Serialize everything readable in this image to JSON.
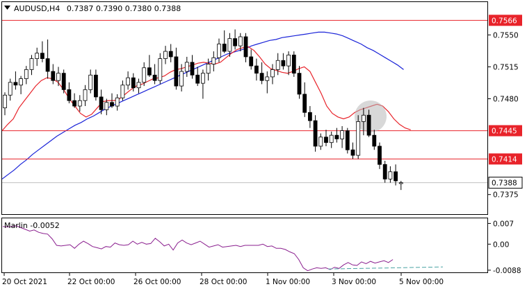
{
  "chart_data": {
    "type": "candlestick",
    "title": "AUDUSD,H4",
    "ohlc_header": "0.7387 0.7390 0.7380 0.7388",
    "price_axis": {
      "ylim": [
        0.73535,
        0.7586
      ],
      "ticks": [
        "0.7550",
        "0.7515",
        "0.7480",
        "0.7375"
      ]
    },
    "levels": [
      {
        "value": 0.7566,
        "label": "0.7566"
      },
      {
        "value": 0.7445,
        "label": "0.7445"
      },
      {
        "value": 0.7414,
        "label": "0.7414"
      }
    ],
    "current_price": {
      "value": 0.7388,
      "label": "0.7388"
    },
    "x_labels": [
      "20 Oct 2021",
      "22 Oct 00:00",
      "26 Oct 00:00",
      "28 Oct 00:00",
      "1 Nov 00:00",
      "3 Nov 00:00",
      "5 Nov 00:00"
    ],
    "candles": [
      [
        0.747,
        0.7487,
        0.7462,
        0.7484
      ],
      [
        0.7484,
        0.7502,
        0.7478,
        0.7498
      ],
      [
        0.7498,
        0.751,
        0.749,
        0.7495
      ],
      [
        0.7495,
        0.7505,
        0.7485,
        0.7502
      ],
      [
        0.7502,
        0.7516,
        0.7496,
        0.7512
      ],
      [
        0.7512,
        0.7528,
        0.7506,
        0.7524
      ],
      [
        0.7524,
        0.7536,
        0.7516,
        0.753
      ],
      [
        0.753,
        0.7543,
        0.752,
        0.7524
      ],
      [
        0.7524,
        0.7545,
        0.7502,
        0.751
      ],
      [
        0.751,
        0.7518,
        0.7496,
        0.75
      ],
      [
        0.75,
        0.7515,
        0.7494,
        0.7508
      ],
      [
        0.7508,
        0.7512,
        0.7486,
        0.749
      ],
      [
        0.749,
        0.7498,
        0.7475,
        0.7478
      ],
      [
        0.7478,
        0.7486,
        0.747,
        0.7472
      ],
      [
        0.7472,
        0.7484,
        0.7466,
        0.7478
      ],
      [
        0.7478,
        0.7495,
        0.7472,
        0.749
      ],
      [
        0.749,
        0.7512,
        0.7486,
        0.7506
      ],
      [
        0.7506,
        0.7512,
        0.7478,
        0.7482
      ],
      [
        0.7482,
        0.749,
        0.7463,
        0.7468
      ],
      [
        0.7468,
        0.748,
        0.7462,
        0.7476
      ],
      [
        0.7476,
        0.7486,
        0.747,
        0.7472
      ],
      [
        0.7472,
        0.7485,
        0.7467,
        0.7481
      ],
      [
        0.7481,
        0.75,
        0.7478,
        0.7495
      ],
      [
        0.7495,
        0.751,
        0.749,
        0.7503
      ],
      [
        0.7503,
        0.7508,
        0.7488,
        0.7492
      ],
      [
        0.7492,
        0.7502,
        0.7486,
        0.7498
      ],
      [
        0.7498,
        0.752,
        0.7494,
        0.7514
      ],
      [
        0.7514,
        0.7528,
        0.7504,
        0.7506
      ],
      [
        0.7506,
        0.7518,
        0.7496,
        0.75
      ],
      [
        0.75,
        0.753,
        0.7496,
        0.7524
      ],
      [
        0.7524,
        0.7538,
        0.7518,
        0.7532
      ],
      [
        0.7532,
        0.754,
        0.752,
        0.7526
      ],
      [
        0.7526,
        0.7536,
        0.749,
        0.7494
      ],
      [
        0.7494,
        0.7518,
        0.7488,
        0.751
      ],
      [
        0.751,
        0.7526,
        0.7504,
        0.752
      ],
      [
        0.752,
        0.7528,
        0.7502,
        0.7506
      ],
      [
        0.7506,
        0.7515,
        0.7494,
        0.7497
      ],
      [
        0.7497,
        0.7512,
        0.748,
        0.7508
      ],
      [
        0.7508,
        0.7524,
        0.75,
        0.7518
      ],
      [
        0.7518,
        0.7532,
        0.751,
        0.7525
      ],
      [
        0.7525,
        0.7546,
        0.752,
        0.754
      ],
      [
        0.754,
        0.7555,
        0.753,
        0.7532
      ],
      [
        0.7532,
        0.7552,
        0.7526,
        0.7546
      ],
      [
        0.7546,
        0.7556,
        0.7534,
        0.7538
      ],
      [
        0.7538,
        0.7552,
        0.7532,
        0.7548
      ],
      [
        0.7548,
        0.7552,
        0.752,
        0.7526
      ],
      [
        0.7526,
        0.7534,
        0.7512,
        0.7516
      ],
      [
        0.7516,
        0.7524,
        0.75,
        0.7508
      ],
      [
        0.7508,
        0.752,
        0.7496,
        0.75
      ],
      [
        0.75,
        0.751,
        0.7486,
        0.7504
      ],
      [
        0.7504,
        0.7518,
        0.7496,
        0.7512
      ],
      [
        0.7512,
        0.753,
        0.7506,
        0.7522
      ],
      [
        0.7522,
        0.753,
        0.7512,
        0.7516
      ],
      [
        0.7516,
        0.7532,
        0.7506,
        0.7528
      ],
      [
        0.7528,
        0.7532,
        0.7504,
        0.7508
      ],
      [
        0.7508,
        0.7516,
        0.748,
        0.7485
      ],
      [
        0.7485,
        0.7498,
        0.746,
        0.7465
      ],
      [
        0.7465,
        0.7472,
        0.7448,
        0.7456
      ],
      [
        0.7456,
        0.7462,
        0.7422,
        0.7428
      ],
      [
        0.7428,
        0.7442,
        0.7424,
        0.7438
      ],
      [
        0.7438,
        0.7446,
        0.7428,
        0.7432
      ],
      [
        0.7432,
        0.7444,
        0.7426,
        0.744
      ],
      [
        0.744,
        0.7448,
        0.7432,
        0.7436
      ],
      [
        0.7436,
        0.745,
        0.7426,
        0.7445
      ],
      [
        0.7445,
        0.7448,
        0.742,
        0.7424
      ],
      [
        0.7424,
        0.7432,
        0.7414,
        0.7418
      ],
      [
        0.7418,
        0.7462,
        0.7414,
        0.7455
      ],
      [
        0.7455,
        0.747,
        0.744,
        0.7462
      ],
      [
        0.7462,
        0.7468,
        0.7438,
        0.744
      ],
      [
        0.744,
        0.7446,
        0.7424,
        0.7428
      ],
      [
        0.7428,
        0.7432,
        0.7403,
        0.7408
      ],
      [
        0.7408,
        0.7412,
        0.7388,
        0.7392
      ],
      [
        0.7392,
        0.7406,
        0.7388,
        0.74
      ],
      [
        0.74,
        0.7408,
        0.7385,
        0.739
      ],
      [
        0.7387,
        0.739,
        0.738,
        0.7388
      ]
    ],
    "ma_red_label": "",
    "ma_blue_label": "",
    "ma_red": [
      0.7445,
      0.7452,
      0.7458,
      0.747,
      0.7478,
      0.7486,
      0.7494,
      0.75,
      0.7503,
      0.7502,
      0.7498,
      0.749,
      0.748,
      0.7472,
      0.7464,
      0.746,
      0.7463,
      0.747,
      0.7477,
      0.7478,
      0.7478,
      0.748,
      0.7485,
      0.749,
      0.7494,
      0.7496,
      0.7499,
      0.7502,
      0.7503,
      0.7505,
      0.7509,
      0.7512,
      0.7513,
      0.7515,
      0.7517,
      0.7519,
      0.752,
      0.7519,
      0.7518,
      0.752,
      0.7525,
      0.753,
      0.7534,
      0.7536,
      0.7537,
      0.7533,
      0.7526,
      0.7518,
      0.7513,
      0.7511,
      0.7509,
      0.7508,
      0.751,
      0.7513,
      0.7515,
      0.751,
      0.7498,
      0.7486,
      0.7472,
      0.7464,
      0.746,
      0.7458,
      0.746,
      0.7465,
      0.7468,
      0.747,
      0.7472,
      0.7474,
      0.7472,
      0.7466,
      0.7458,
      0.7452,
      0.7448,
      0.7446
    ],
    "ma_blue": [
      0.7392,
      0.7397,
      0.7402,
      0.7408,
      0.7413,
      0.7419,
      0.7424,
      0.7429,
      0.7434,
      0.7439,
      0.7443,
      0.7447,
      0.7451,
      0.7454,
      0.7458,
      0.7461,
      0.7465,
      0.7469,
      0.7472,
      0.7475,
      0.7478,
      0.7481,
      0.7484,
      0.7487,
      0.749,
      0.7493,
      0.7496,
      0.7499,
      0.7502,
      0.7505,
      0.7508,
      0.7511,
      0.7514,
      0.7517,
      0.752,
      0.7523,
      0.7526,
      0.7529,
      0.7531,
      0.7533,
      0.7535,
      0.7538,
      0.754,
      0.7542,
      0.7544,
      0.7545,
      0.7547,
      0.7548,
      0.7549,
      0.755,
      0.7551,
      0.7552,
      0.7553,
      0.7553,
      0.7552,
      0.7551,
      0.7549,
      0.7546,
      0.7543,
      0.754,
      0.7536,
      0.7533,
      0.7529,
      0.7525,
      0.7521,
      0.7517,
      0.7512
    ],
    "oscillator": {
      "label": "Marlin -0.0052",
      "ylim": [
        -0.0093,
        0.0085
      ],
      "ticks": [
        "0.007",
        "0.00",
        "-0.0088"
      ],
      "values": [
        0.006,
        0.0058,
        0.006,
        0.0062,
        0.0056,
        0.005,
        0.0044,
        0.0048,
        0.004,
        0.0036,
        0.0034,
        0.0018,
        -0.0004,
        -0.0006,
        -0.0004,
        -0.0002,
        -0.0014,
        0.0,
        0.001,
        0.0002,
        -0.0008,
        -0.0012,
        -0.0016,
        -0.0008,
        -0.001,
        0.0004,
        -0.0002,
        -0.0004,
        -0.0002,
        0.001,
        0.0,
        0.0006,
        0.0,
        0.0002,
        0.002,
        0.0008,
        -0.0006,
        0.0,
        -0.002,
        0.0004,
        0.0014,
        0.0004,
        -0.0002,
        0.0004,
        0.001,
        0.0,
        -0.001,
        -0.0006,
        -0.0002,
        -0.001,
        -0.0008,
        -0.0006,
        -0.0004,
        -0.0008,
        -0.0004,
        -0.0004,
        -0.0004,
        -0.0004,
        0.0,
        -0.0008,
        -0.0006,
        -0.0014,
        -0.0014,
        -0.0018,
        -0.0026,
        -0.0032,
        -0.0052,
        -0.008,
        -0.009,
        -0.0084,
        -0.008,
        -0.0082,
        -0.008,
        -0.0086,
        -0.0078,
        -0.0082,
        -0.007,
        -0.0062,
        -0.007,
        -0.0072,
        -0.006,
        -0.0066,
        -0.0058,
        -0.0064,
        -0.006,
        -0.0056,
        -0.0062,
        -0.0052
      ],
      "trendline": [
        -0.0084,
        -0.0077
      ]
    }
  }
}
